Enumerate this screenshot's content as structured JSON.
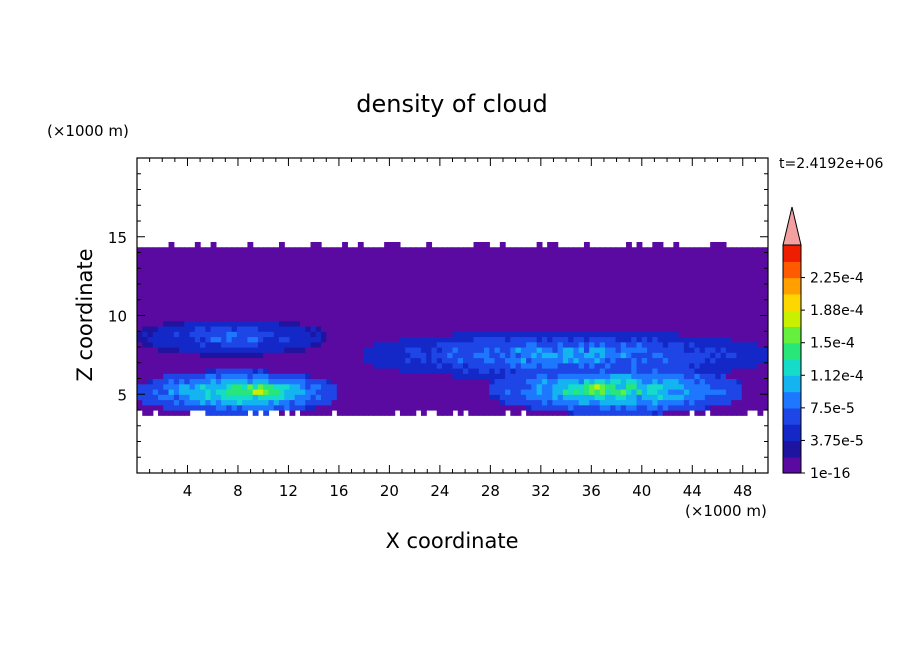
{
  "chart_data": {
    "type": "heatmap",
    "title": "density of cloud",
    "xlabel": "X coordinate",
    "ylabel": "Z coordinate",
    "x_unit": "(×1000 m)",
    "y_unit": "(×1000 m)",
    "time_label": "t=2.4192e+06",
    "xlim": [
      0,
      50
    ],
    "ylim": [
      0,
      20
    ],
    "x_ticks": [
      4,
      8,
      12,
      16,
      20,
      24,
      28,
      32,
      36,
      40,
      44,
      48
    ],
    "y_ticks": [
      5,
      10,
      15
    ],
    "colorbar": {
      "levels": [
        1e-16,
        1.875e-05,
        3.75e-05,
        5.625e-05,
        7.5e-05,
        9.375e-05,
        0.0001125,
        0.00013125,
        0.00015,
        0.00016875,
        0.0001875,
        0.00020625,
        0.000225,
        0.00024375
      ],
      "colors": [
        "#5a0aa0",
        "#1e14a0",
        "#1428c8",
        "#1e46e6",
        "#1e78ff",
        "#14b4f0",
        "#14dcc8",
        "#28e678",
        "#64f03c",
        "#c8f000",
        "#ffd700",
        "#ffa000",
        "#ff5a00",
        "#f01e00"
      ],
      "labels": [
        "1e-16",
        "3.75e-5",
        "7.5e-5",
        "1.12e-4",
        "1.5e-4",
        "1.88e-4",
        "2.25e-4"
      ],
      "label_levels": [
        1e-16,
        3.75e-05,
        7.5e-05,
        0.0001125,
        0.00015,
        0.0001875,
        0.000225
      ],
      "extend_color": "#f5a0a0"
    },
    "cloud_layer": {
      "base_z": [
        3.5,
        3.9
      ],
      "top_z": [
        14.3,
        14.8
      ],
      "background_density": 1e-16
    },
    "features": [
      {
        "x_range": [
          0,
          15
        ],
        "z_range": [
          7.5,
          9.8
        ],
        "density": 7.5e-05
      },
      {
        "x_range": [
          0,
          16
        ],
        "z_range": [
          3.8,
          6.5
        ],
        "density": 0.00013
      },
      {
        "x_range": [
          5,
          14
        ],
        "z_range": [
          4.5,
          6.0
        ],
        "density": 0.00016
      },
      {
        "x_range": [
          18,
          50
        ],
        "z_range": [
          6.0,
          9.0
        ],
        "density": 9.5e-05
      },
      {
        "x_range": [
          28,
          48
        ],
        "z_range": [
          3.8,
          6.8
        ],
        "density": 0.00013
      },
      {
        "x_range": [
          32,
          40
        ],
        "z_range": [
          4.7,
          6.0
        ],
        "density": 0.000165
      }
    ]
  }
}
